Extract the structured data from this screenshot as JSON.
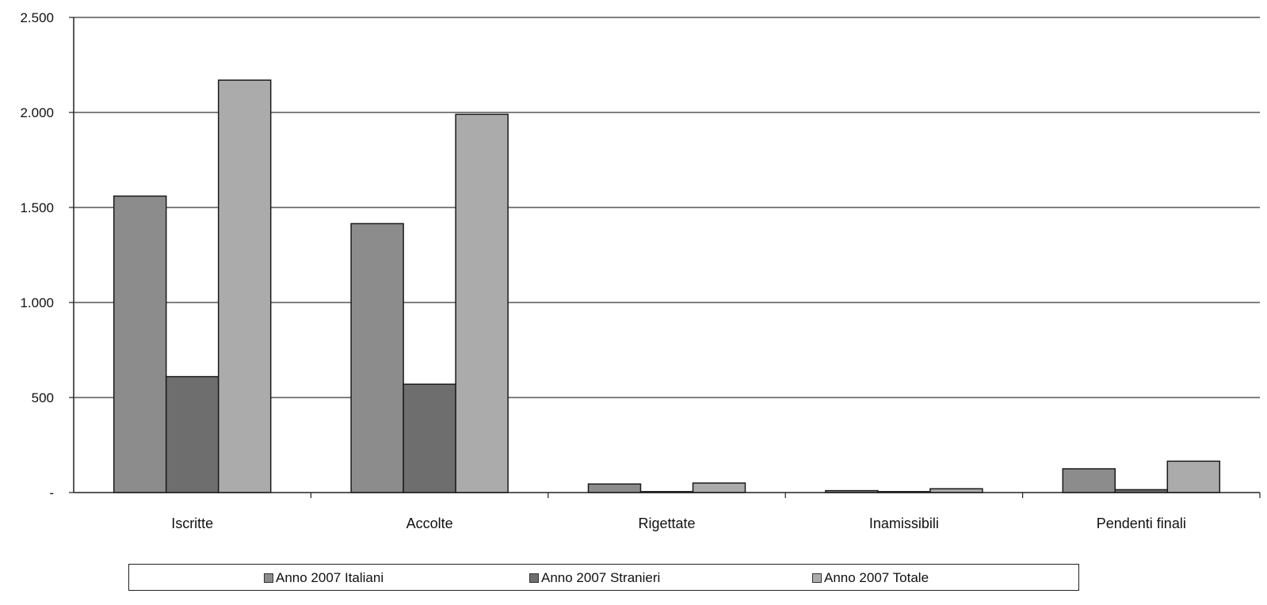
{
  "chart_data": {
    "type": "bar",
    "categories": [
      "Iscritte",
      "Accolte",
      "Rigettate",
      "Inamissibili",
      "Pendenti finali"
    ],
    "series": [
      {
        "name": "Anno 2007 Italiani",
        "values": [
          1560,
          1415,
          45,
          10,
          125
        ],
        "color": "#8c8c8c"
      },
      {
        "name": "Anno 2007 Stranieri",
        "values": [
          610,
          570,
          5,
          5,
          15
        ],
        "color": "#6e6e6e"
      },
      {
        "name": "Anno 2007 Totale",
        "values": [
          2170,
          1990,
          50,
          20,
          165
        ],
        "color": "#ababab"
      }
    ],
    "ylim": [
      0,
      2500
    ],
    "y_ticks": [
      {
        "value": 0,
        "label": "-"
      },
      {
        "value": 500,
        "label": "500"
      },
      {
        "value": 1000,
        "label": "1.000"
      },
      {
        "value": 1500,
        "label": "1.500"
      },
      {
        "value": 2000,
        "label": "2.000"
      },
      {
        "value": 2500,
        "label": "2.500"
      }
    ],
    "grid": true,
    "legend_position": "bottom"
  }
}
